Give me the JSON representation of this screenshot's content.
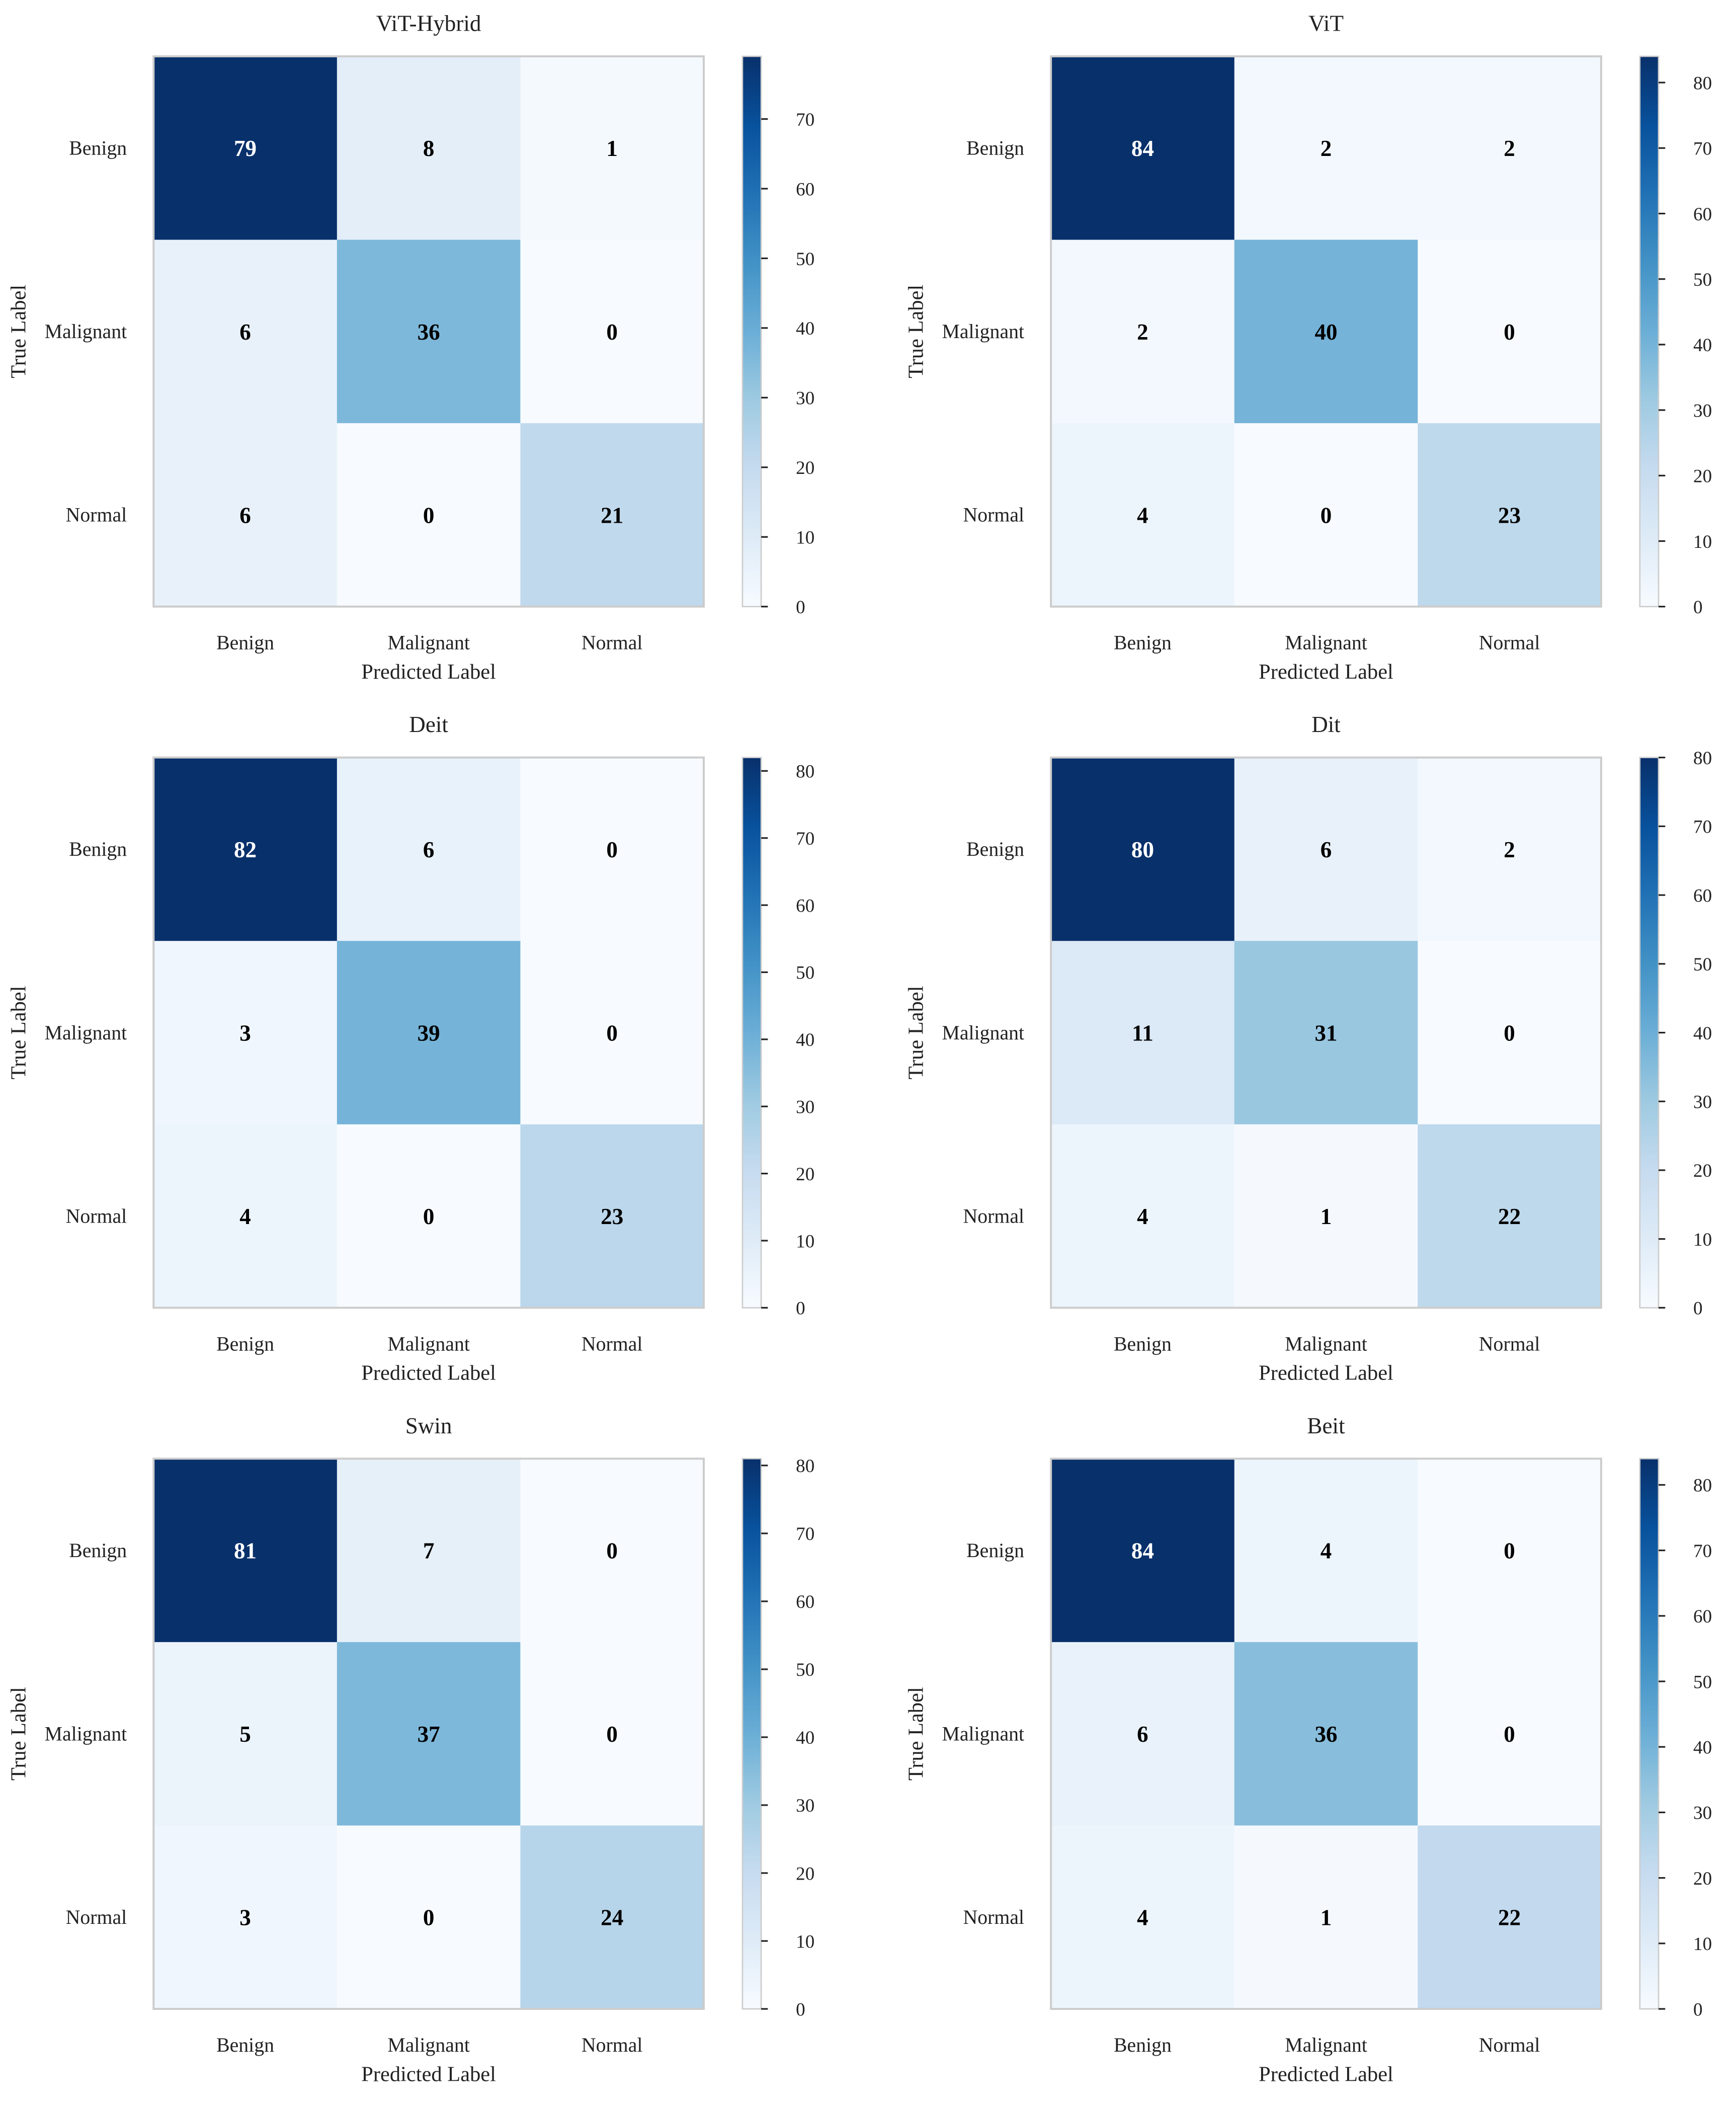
{
  "chart_data": [
    {
      "type": "heatmap",
      "title": "ViT-Hybrid",
      "xlabel": "Predicted Label",
      "ylabel": "True Label",
      "x_categories": [
        "Benign",
        "Malignant",
        "Normal"
      ],
      "y_categories": [
        "Benign",
        "Malignant",
        "Normal"
      ],
      "values": [
        [
          79,
          8,
          1
        ],
        [
          6,
          36,
          0
        ],
        [
          6,
          0,
          21
        ]
      ],
      "colorbar_ticks": [
        0,
        10,
        20,
        30,
        40,
        50,
        60,
        70
      ],
      "colormap": "Blues"
    },
    {
      "type": "heatmap",
      "title": "ViT",
      "xlabel": "Predicted Label",
      "ylabel": "True Label",
      "x_categories": [
        "Benign",
        "Malignant",
        "Normal"
      ],
      "y_categories": [
        "Benign",
        "Malignant",
        "Normal"
      ],
      "values": [
        [
          84,
          2,
          2
        ],
        [
          2,
          40,
          0
        ],
        [
          4,
          0,
          23
        ]
      ],
      "colorbar_ticks": [
        0,
        10,
        20,
        30,
        40,
        50,
        60,
        70,
        80
      ],
      "colormap": "Blues"
    },
    {
      "type": "heatmap",
      "title": "Deit",
      "xlabel": "Predicted Label",
      "ylabel": "True Label",
      "x_categories": [
        "Benign",
        "Malignant",
        "Normal"
      ],
      "y_categories": [
        "Benign",
        "Malignant",
        "Normal"
      ],
      "values": [
        [
          82,
          6,
          0
        ],
        [
          3,
          39,
          0
        ],
        [
          4,
          0,
          23
        ]
      ],
      "colorbar_ticks": [
        0,
        10,
        20,
        30,
        40,
        50,
        60,
        70,
        80
      ],
      "colormap": "Blues"
    },
    {
      "type": "heatmap",
      "title": "Dit",
      "xlabel": "Predicted Label",
      "ylabel": "True Label",
      "x_categories": [
        "Benign",
        "Malignant",
        "Normal"
      ],
      "y_categories": [
        "Benign",
        "Malignant",
        "Normal"
      ],
      "values": [
        [
          80,
          6,
          2
        ],
        [
          11,
          31,
          0
        ],
        [
          4,
          1,
          22
        ]
      ],
      "colorbar_ticks": [
        0,
        10,
        20,
        30,
        40,
        50,
        60,
        70,
        80
      ],
      "colormap": "Blues"
    },
    {
      "type": "heatmap",
      "title": "Swin",
      "xlabel": "Predicted Label",
      "ylabel": "True Label",
      "x_categories": [
        "Benign",
        "Malignant",
        "Normal"
      ],
      "y_categories": [
        "Benign",
        "Malignant",
        "Normal"
      ],
      "values": [
        [
          81,
          7,
          0
        ],
        [
          5,
          37,
          0
        ],
        [
          3,
          0,
          24
        ]
      ],
      "colorbar_ticks": [
        0,
        10,
        20,
        30,
        40,
        50,
        60,
        70,
        80
      ],
      "colormap": "Blues"
    },
    {
      "type": "heatmap",
      "title": "Beit",
      "xlabel": "Predicted Label",
      "ylabel": "True Label",
      "x_categories": [
        "Benign",
        "Malignant",
        "Normal"
      ],
      "y_categories": [
        "Benign",
        "Malignant",
        "Normal"
      ],
      "values": [
        [
          84,
          4,
          0
        ],
        [
          6,
          36,
          0
        ],
        [
          4,
          1,
          22
        ]
      ],
      "colorbar_ticks": [
        0,
        10,
        20,
        30,
        40,
        50,
        60,
        70,
        80
      ],
      "colormap": "Blues"
    }
  ]
}
